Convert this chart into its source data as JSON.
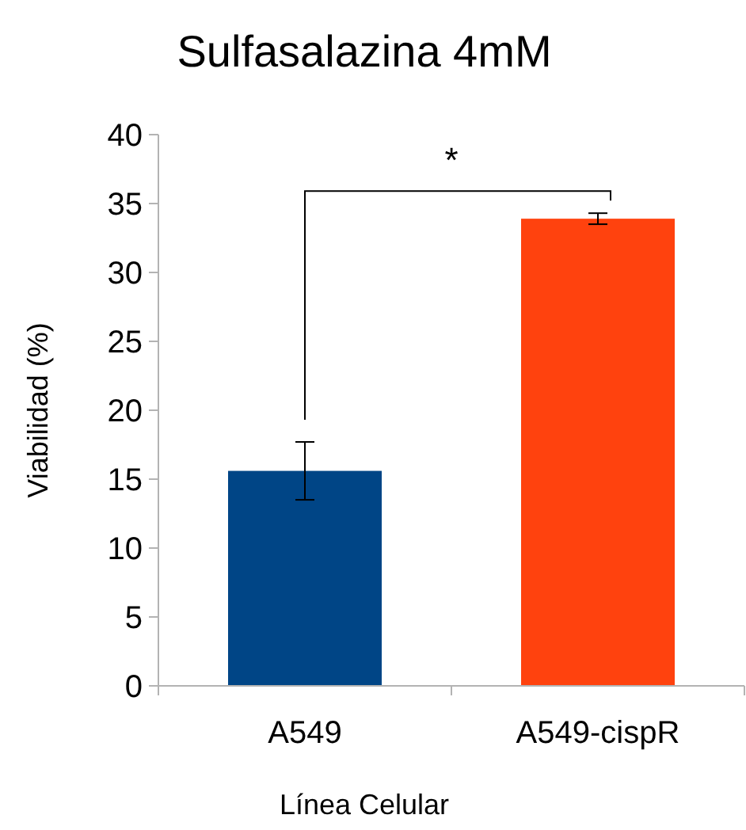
{
  "chart_data": {
    "type": "bar",
    "title": "Sulfasalazina 4mM",
    "xlabel": "Línea Celular",
    "ylabel": "Viabilidad (%)",
    "categories": [
      "A549",
      "A549-cispR"
    ],
    "values": [
      15.6,
      33.9
    ],
    "colors": [
      "#004586",
      "#ff420e"
    ],
    "errors": [
      2.1,
      0.4
    ],
    "ylim": [
      0,
      40
    ],
    "yticks": [
      0,
      5,
      10,
      15,
      20,
      25,
      30,
      35,
      40
    ],
    "grid": false,
    "annotations": [
      "*"
    ]
  }
}
